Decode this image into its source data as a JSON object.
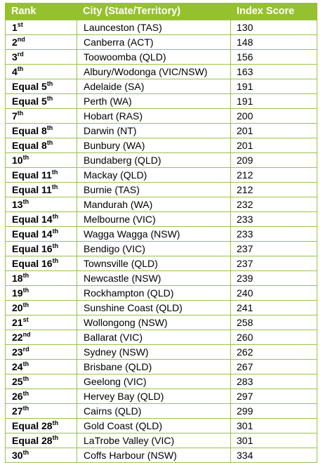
{
  "table": {
    "headers": [
      "Rank",
      "City (State/Territory)",
      "Index Score"
    ],
    "rows": [
      {
        "rank_prefix": "",
        "rank_num": "1",
        "rank_suffix": "st",
        "city": "Launceston (TAS)",
        "score": "130"
      },
      {
        "rank_prefix": "",
        "rank_num": "2",
        "rank_suffix": "nd",
        "city": "Canberra (ACT)",
        "score": "148"
      },
      {
        "rank_prefix": "",
        "rank_num": "3",
        "rank_suffix": "rd",
        "city": "Toowoomba (QLD)",
        "score": "156"
      },
      {
        "rank_prefix": "",
        "rank_num": "4",
        "rank_suffix": "th",
        "city": "Albury/Wodonga (VIC/NSW)",
        "score": "163"
      },
      {
        "rank_prefix": "Equal ",
        "rank_num": "5",
        "rank_suffix": "th",
        "city": "Adelaide (SA)",
        "score": "191"
      },
      {
        "rank_prefix": "Equal ",
        "rank_num": "5",
        "rank_suffix": "th",
        "city": "Perth (WA)",
        "score": "191"
      },
      {
        "rank_prefix": "",
        "rank_num": "7",
        "rank_suffix": "th",
        "city": "Hobart (RAS)",
        "score": "200"
      },
      {
        "rank_prefix": "Equal ",
        "rank_num": "8",
        "rank_suffix": "th",
        "city": "Darwin (NT)",
        "score": "201"
      },
      {
        "rank_prefix": "Equal ",
        "rank_num": "8",
        "rank_suffix": "th",
        "city": "Bunbury (WA)",
        "score": "201"
      },
      {
        "rank_prefix": "",
        "rank_num": "10",
        "rank_suffix": "th",
        "city": "Bundaberg (QLD)",
        "score": "209"
      },
      {
        "rank_prefix": "Equal ",
        "rank_num": "11",
        "rank_suffix": "th",
        "city": "Mackay (QLD)",
        "score": "212"
      },
      {
        "rank_prefix": "Equal ",
        "rank_num": "11",
        "rank_suffix": "th",
        "city": "Burnie (TAS)",
        "score": "212"
      },
      {
        "rank_prefix": "",
        "rank_num": "13",
        "rank_suffix": "th",
        "city": "Mandurah (WA)",
        "score": "232"
      },
      {
        "rank_prefix": "Equal ",
        "rank_num": "14",
        "rank_suffix": "th",
        "city": "Melbourne (VIC)",
        "score": "233"
      },
      {
        "rank_prefix": "Equal ",
        "rank_num": "14",
        "rank_suffix": "th",
        "city": "Wagga Wagga (NSW)",
        "score": "233"
      },
      {
        "rank_prefix": "Equal ",
        "rank_num": "16",
        "rank_suffix": "th",
        "city": "Bendigo (VIC)",
        "score": "237"
      },
      {
        "rank_prefix": "Equal ",
        "rank_num": "16",
        "rank_suffix": "th",
        "city": "Townsville (QLD)",
        "score": "237"
      },
      {
        "rank_prefix": "",
        "rank_num": "18",
        "rank_suffix": "th",
        "city": "Newcastle (NSW)",
        "score": "239"
      },
      {
        "rank_prefix": "",
        "rank_num": "19",
        "rank_suffix": "th",
        "city": "Rockhampton (QLD)",
        "score": "240"
      },
      {
        "rank_prefix": "",
        "rank_num": "20",
        "rank_suffix": "th",
        "city": "Sunshine Coast (QLD)",
        "score": "241"
      },
      {
        "rank_prefix": "",
        "rank_num": "21",
        "rank_suffix": "st",
        "city": "Wollongong (NSW)",
        "score": "258"
      },
      {
        "rank_prefix": "",
        "rank_num": "22",
        "rank_suffix": "nd",
        "city": "Ballarat (VIC)",
        "score": "260"
      },
      {
        "rank_prefix": "",
        "rank_num": "23",
        "rank_suffix": "rd",
        "city": "Sydney (NSW)",
        "score": "262"
      },
      {
        "rank_prefix": "",
        "rank_num": "24",
        "rank_suffix": "th",
        "city": "Brisbane (QLD)",
        "score": "267"
      },
      {
        "rank_prefix": "",
        "rank_num": "25",
        "rank_suffix": "th",
        "city": "Geelong (VIC)",
        "score": "283"
      },
      {
        "rank_prefix": "",
        "rank_num": "26",
        "rank_suffix": "th",
        "city": "Hervey Bay (QLD)",
        "score": "297"
      },
      {
        "rank_prefix": "",
        "rank_num": "27",
        "rank_suffix": "th",
        "city": "Cairns (QLD)",
        "score": "299"
      },
      {
        "rank_prefix": "Equal ",
        "rank_num": "28",
        "rank_suffix": "th",
        "city": "Gold Coast (QLD)",
        "score": "301"
      },
      {
        "rank_prefix": "Equal ",
        "rank_num": "28",
        "rank_suffix": "th",
        "city": "LaTrobe Valley (VIC)",
        "score": "301"
      },
      {
        "rank_prefix": "",
        "rank_num": "30",
        "rank_suffix": "th",
        "city": "Coffs Harbour (NSW)",
        "score": "334"
      }
    ]
  },
  "colors": {
    "header_background": "#96c12f",
    "header_text": "#ffffff",
    "border": "#98c34a"
  }
}
